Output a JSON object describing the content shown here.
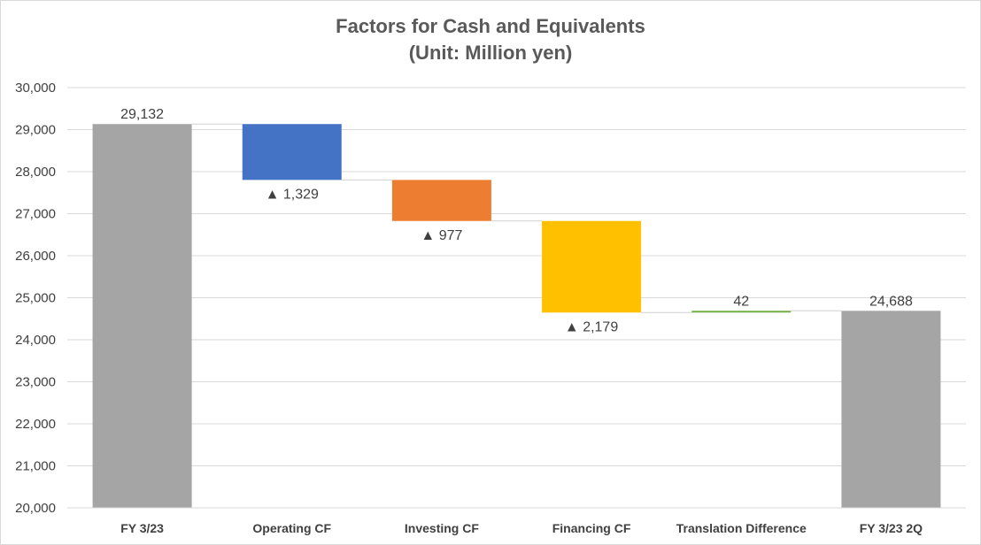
{
  "chart_data": {
    "type": "bar",
    "subtype": "waterfall",
    "title": "Factors for Cash and Equivalents",
    "subtitle": "(Unit: Million yen)",
    "categories": [
      "FY 3/23",
      "Operating CF",
      "Investing CF",
      "Financing CF",
      "Translation Difference",
      "FY 3/23 2Q"
    ],
    "values": [
      29132,
      -1329,
      -977,
      -2179,
      42,
      24688
    ],
    "bar_kind": [
      "total",
      "delta",
      "delta",
      "delta",
      "delta",
      "total"
    ],
    "data_labels": [
      "29,132",
      "▲ 1,329",
      "▲ 977",
      "▲ 2,179",
      "42",
      "24,688"
    ],
    "colors": [
      "#a5a5a5",
      "#4472c4",
      "#ed7d31",
      "#ffc000",
      "#70ad47",
      "#a5a5a5"
    ],
    "ylim": [
      20000,
      30000
    ],
    "yticks": [
      "20,000",
      "21,000",
      "22,000",
      "23,000",
      "24,000",
      "25,000",
      "26,000",
      "27,000",
      "28,000",
      "29,000",
      "30,000"
    ],
    "xlabel": "",
    "ylabel": "",
    "grid": true,
    "legend": "none",
    "connector_lines": true
  }
}
